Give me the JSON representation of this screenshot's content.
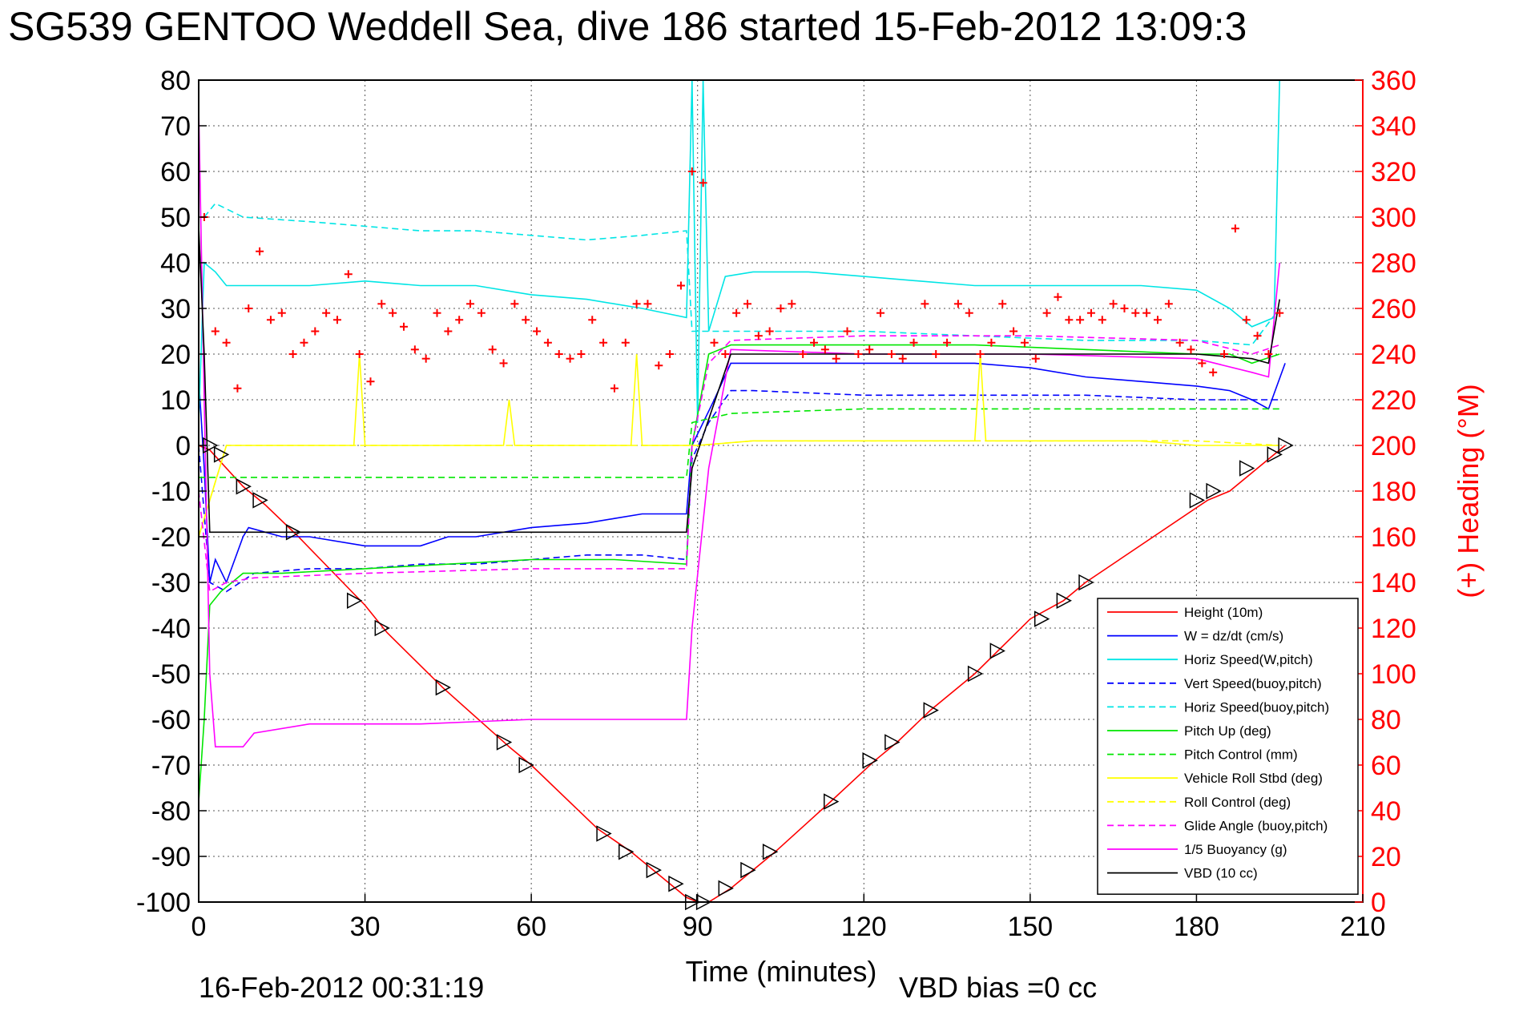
{
  "chart_data": {
    "type": "line",
    "title": "SG539 GENTOO Weddell Sea, dive 186 started 15-Feb-2012 13:09:3",
    "xlabel": "Time (minutes)",
    "ylabel_right": "(+) Heading (°M)",
    "footer_left": "16-Feb-2012 00:31:19",
    "footer_right": "VBD bias =0 cc",
    "xlim": [
      0,
      210
    ],
    "ylim": [
      -100,
      80
    ],
    "ylim_right": [
      0,
      360
    ],
    "xticks": [
      "0",
      "30",
      "60",
      "90",
      "120",
      "150",
      "180",
      "210"
    ],
    "yticks": [
      "80",
      "70",
      "60",
      "50",
      "40",
      "30",
      "20",
      "10",
      "0",
      "-10",
      "-20",
      "-30",
      "-40",
      "-50",
      "-60",
      "-70",
      "-80",
      "-90",
      "-100"
    ],
    "yticks_right": [
      "360",
      "340",
      "320",
      "300",
      "280",
      "260",
      "240",
      "220",
      "200",
      "180",
      "160",
      "140",
      "120",
      "100",
      "80",
      "60",
      "40",
      "20",
      "0"
    ],
    "grid": true,
    "legend_position": "lower-right",
    "series": [
      {
        "name": "Height (10m)",
        "color": "#ff0000",
        "style": "solid",
        "x": [
          0,
          2,
          8,
          12,
          18,
          30,
          34,
          44,
          56,
          60,
          72,
          78,
          84,
          88,
          90,
          92,
          96,
          100,
          104,
          114,
          122,
          126,
          132,
          140,
          150,
          156,
          160,
          182,
          186,
          194,
          196
        ],
        "y": [
          0,
          -1,
          -9,
          -13,
          -20,
          -35,
          -41,
          -53,
          -66,
          -70,
          -84,
          -89,
          -95,
          -99,
          -100,
          -100,
          -97,
          -93,
          -89,
          -78,
          -69,
          -65,
          -58,
          -50,
          -38,
          -34,
          -30,
          -12,
          -10,
          -2,
          0
        ]
      },
      {
        "name": "W = dz/dt (cm/s)",
        "color": "#0000ff",
        "style": "solid",
        "x": [
          0,
          1,
          2,
          3,
          5,
          8,
          9,
          15,
          20,
          30,
          40,
          45,
          50,
          60,
          70,
          75,
          80,
          84,
          88,
          89,
          93,
          96,
          100,
          110,
          120,
          130,
          140,
          150,
          160,
          170,
          180,
          186,
          190,
          193,
          196
        ],
        "y": [
          15,
          -5,
          -30,
          -25,
          -30,
          -20,
          -18,
          -20,
          -20,
          -22,
          -22,
          -20,
          -20,
          -18,
          -17,
          -16,
          -15,
          -15,
          -15,
          0,
          10,
          18,
          18,
          18,
          18,
          18,
          18,
          17,
          15,
          14,
          13,
          12,
          10,
          8,
          18
        ]
      },
      {
        "name": "Horiz Speed(W,pitch)",
        "color": "#00e5e5",
        "style": "solid",
        "x": [
          0,
          1,
          3,
          5,
          10,
          20,
          30,
          40,
          50,
          60,
          70,
          80,
          88,
          89,
          90,
          91,
          92,
          95,
          100,
          110,
          120,
          130,
          140,
          150,
          160,
          170,
          180,
          186,
          190,
          194,
          195
        ],
        "y": [
          5,
          40,
          38,
          35,
          35,
          35,
          36,
          35,
          35,
          33,
          32,
          30,
          28,
          80,
          5,
          80,
          25,
          37,
          38,
          38,
          37,
          36,
          35,
          35,
          35,
          35,
          34,
          30,
          26,
          28,
          80
        ]
      },
      {
        "name": "Vert Speed(buoy,pitch)",
        "color": "#0000ff",
        "style": "dashed",
        "x": [
          0,
          2,
          5,
          10,
          20,
          30,
          40,
          50,
          60,
          70,
          80,
          88,
          89,
          92,
          96,
          100,
          120,
          140,
          160,
          180,
          190,
          195
        ],
        "y": [
          0,
          -30,
          -32,
          -28,
          -27,
          -27,
          -26,
          -26,
          -25,
          -24,
          -24,
          -25,
          -3,
          5,
          12,
          12,
          11,
          11,
          11,
          10,
          10,
          10
        ]
      },
      {
        "name": "Horiz Speed(buoy,pitch)",
        "color": "#00e5e5",
        "style": "dashed",
        "x": [
          1,
          3,
          8,
          20,
          30,
          40,
          50,
          60,
          70,
          80,
          88,
          89,
          96,
          100,
          120,
          140,
          160,
          180,
          190,
          195
        ],
        "y": [
          50,
          53,
          50,
          49,
          48,
          47,
          47,
          46,
          45,
          46,
          47,
          25,
          25,
          25,
          25,
          24,
          23,
          23,
          22,
          30
        ]
      },
      {
        "name": "Pitch Up (deg)",
        "color": "#00e600",
        "style": "solid",
        "x": [
          0,
          1,
          2,
          4,
          8,
          15,
          30,
          45,
          60,
          75,
          88,
          89,
          92,
          96,
          100,
          120,
          140,
          160,
          180,
          186,
          190,
          195
        ],
        "y": [
          -78,
          -60,
          -35,
          -32,
          -28,
          -28,
          -27,
          -26,
          -25,
          -25,
          -26,
          0,
          20,
          22,
          22,
          22,
          22,
          21,
          20,
          20,
          18,
          20
        ]
      },
      {
        "name": "Pitch Control (mm)",
        "color": "#00e600",
        "style": "dashed",
        "x": [
          0,
          3,
          10,
          30,
          60,
          88,
          89,
          96,
          120,
          150,
          180,
          195
        ],
        "y": [
          -7,
          -7,
          -7,
          -7,
          -7,
          -7,
          5,
          7,
          8,
          8,
          8,
          8
        ]
      },
      {
        "name": "Vehicle Roll Stbd (deg)",
        "color": "#ffff00",
        "style": "solid",
        "x": [
          0,
          5,
          10,
          20,
          28,
          29,
          30,
          40,
          55,
          56,
          57,
          70,
          78,
          79,
          80,
          88,
          90,
          100,
          120,
          130,
          140,
          141,
          142,
          150,
          170,
          180,
          190,
          195
        ],
        "y": [
          -20,
          0,
          0,
          0,
          0,
          20,
          0,
          0,
          0,
          10,
          0,
          0,
          0,
          20,
          0,
          0,
          0,
          1,
          1,
          1,
          1,
          20,
          1,
          1,
          1,
          0,
          0,
          0
        ]
      },
      {
        "name": "Roll Control (deg)",
        "color": "#ffff00",
        "style": "dashed",
        "x": [
          0,
          5,
          10,
          20,
          40,
          60,
          80,
          88,
          90,
          100,
          120,
          140,
          160,
          180,
          195
        ],
        "y": [
          -20,
          0,
          0,
          0,
          0,
          0,
          0,
          0,
          0,
          1,
          1,
          1,
          1,
          1,
          0
        ]
      },
      {
        "name": "Glide Angle (buoy,pitch)",
        "color": "#ff00ff",
        "style": "dashed",
        "x": [
          0,
          2,
          5,
          10,
          30,
          60,
          88,
          89,
          92,
          96,
          120,
          150,
          180,
          190,
          195
        ],
        "y": [
          -10,
          -32,
          -30,
          -29,
          -28,
          -27,
          -27,
          0,
          18,
          23,
          24,
          24,
          23,
          20,
          22
        ]
      },
      {
        "name": "1/5 Buoyancy (g)",
        "color": "#ff00ff",
        "style": "solid",
        "x": [
          0,
          1,
          2,
          3,
          8,
          10,
          20,
          40,
          60,
          80,
          88,
          89,
          92,
          96,
          120,
          150,
          180,
          190,
          193,
          195
        ],
        "y": [
          74,
          10,
          -50,
          -66,
          -66,
          -63,
          -61,
          -61,
          -60,
          -60,
          -60,
          -40,
          -5,
          21,
          20,
          20,
          19,
          16,
          15,
          40
        ]
      },
      {
        "name": "VBD (10 cc)",
        "color": "#000000",
        "style": "solid",
        "x": [
          0,
          1,
          2,
          4,
          20,
          60,
          88,
          89,
          96,
          120,
          150,
          180,
          190,
          193,
          195
        ],
        "y": [
          48,
          20,
          -19,
          -19,
          -19,
          -19,
          -19,
          -5,
          20,
          20,
          20,
          20,
          19,
          18,
          32
        ]
      }
    ],
    "heading_series": {
      "name": "(+) Heading",
      "color": "#ff0000",
      "marker": "+",
      "x": [
        1,
        3,
        5,
        7,
        9,
        11,
        13,
        15,
        17,
        19,
        21,
        23,
        25,
        27,
        29,
        31,
        33,
        35,
        37,
        39,
        41,
        43,
        45,
        47,
        49,
        51,
        53,
        55,
        57,
        59,
        61,
        63,
        65,
        67,
        69,
        71,
        73,
        75,
        77,
        79,
        81,
        83,
        85,
        87,
        89,
        91,
        93,
        95,
        97,
        99,
        101,
        103,
        105,
        107,
        109,
        111,
        113,
        115,
        117,
        119,
        121,
        123,
        125,
        127,
        129,
        131,
        133,
        135,
        137,
        139,
        141,
        143,
        145,
        147,
        149,
        151,
        153,
        155,
        157,
        159,
        161,
        163,
        165,
        167,
        169,
        171,
        173,
        175,
        177,
        179,
        181,
        183,
        185,
        187,
        189,
        191,
        193,
        195
      ],
      "y": [
        300,
        250,
        245,
        225,
        260,
        285,
        255,
        258,
        240,
        245,
        250,
        258,
        255,
        275,
        240,
        228,
        262,
        258,
        252,
        242,
        238,
        258,
        250,
        255,
        262,
        258,
        242,
        236,
        262,
        255,
        250,
        245,
        240,
        238,
        240,
        255,
        245,
        225,
        245,
        262,
        262,
        235,
        240,
        270,
        320,
        315,
        245,
        240,
        258,
        262,
        248,
        250,
        260,
        262,
        240,
        245,
        242,
        238,
        250,
        240,
        242,
        258,
        240,
        238,
        245,
        262,
        240,
        245,
        262,
        258,
        240,
        245,
        262,
        250,
        245,
        238,
        258,
        265,
        255,
        255,
        258,
        255,
        262,
        260,
        258,
        258,
        255,
        262,
        245,
        242,
        236,
        232,
        240,
        295,
        255,
        248,
        240,
        258
      ]
    },
    "height_markers": {
      "marker": "triangle",
      "x": [
        2,
        4,
        8,
        11,
        17,
        28,
        33,
        44,
        55,
        59,
        73,
        77,
        82,
        86,
        89,
        91,
        95,
        99,
        103,
        114,
        121,
        125,
        132,
        140,
        144,
        152,
        156,
        160,
        180,
        183,
        189,
        194,
        196
      ],
      "y": [
        0,
        -2,
        -9,
        -12,
        -19,
        -34,
        -40,
        -53,
        -65,
        -70,
        -85,
        -89,
        -93,
        -96,
        -100,
        -100,
        -97,
        -93,
        -89,
        -78,
        -69,
        -65,
        -58,
        -50,
        -45,
        -38,
        -34,
        -30,
        -12,
        -10,
        -5,
        -2,
        0
      ]
    }
  }
}
